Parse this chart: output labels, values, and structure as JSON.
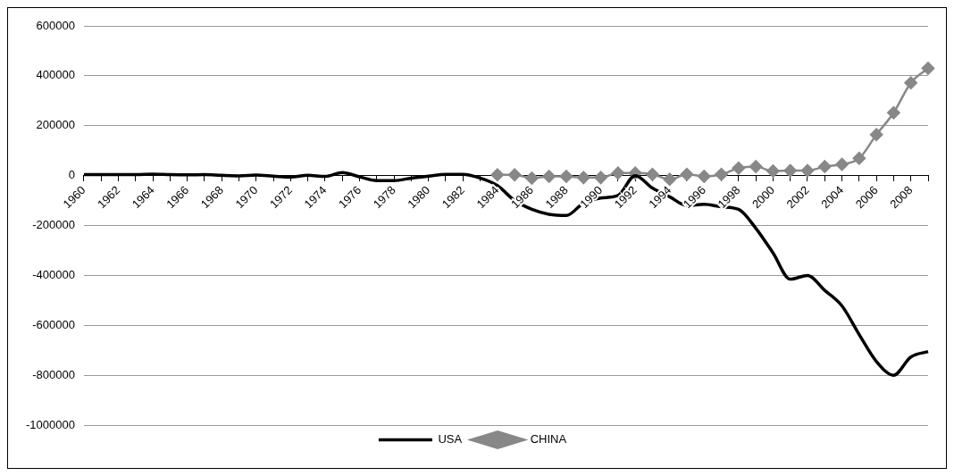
{
  "chart_data": {
    "type": "line",
    "categories": [
      "1960",
      null,
      "1962",
      null,
      "1964",
      null,
      "1966",
      null,
      "1968",
      null,
      "1970",
      null,
      "1972",
      null,
      "1974",
      null,
      "1976",
      null,
      "1978",
      null,
      "1980",
      null,
      "1982",
      null,
      "1984",
      null,
      "1986",
      null,
      "1988",
      null,
      "1990",
      null,
      "1992",
      null,
      "1994",
      null,
      "1996",
      null,
      "1998",
      null,
      "2000",
      null,
      "2002",
      null,
      "2004",
      null,
      "2006",
      null,
      "2008",
      null
    ],
    "series": [
      {
        "name": "USA",
        "color": "#000000",
        "marker": "none",
        "values": [
          4000,
          4000,
          4000,
          4000,
          6000,
          4000,
          3000,
          4000,
          1000,
          -1000,
          2000,
          -2000,
          -6000,
          1000,
          -3000,
          12000,
          -5000,
          -20000,
          -20000,
          -10000,
          -2000,
          5000,
          5000,
          -10000,
          -40000,
          -100000,
          -135000,
          -155000,
          -160000,
          -110000,
          -90000,
          -80000,
          0,
          -50000,
          -85000,
          -120000,
          -115000,
          -125000,
          -135000,
          -211000,
          -310000,
          -415000,
          -400000,
          -460000,
          -522000,
          -637000,
          -745000,
          -800000,
          -727000,
          -705000
        ]
      },
      {
        "name": "CHINA",
        "color": "#888888",
        "marker": "diamond",
        "values": [
          null,
          null,
          null,
          null,
          null,
          null,
          null,
          null,
          null,
          null,
          null,
          null,
          null,
          null,
          null,
          null,
          null,
          null,
          null,
          null,
          null,
          null,
          null,
          null,
          3000,
          3000,
          -10000,
          -3000,
          -3000,
          -8000,
          -8000,
          10000,
          10000,
          5000,
          -15000,
          5000,
          -3000,
          5000,
          30000,
          36000,
          18000,
          20000,
          20000,
          36000,
          45000,
          69000,
          164000,
          252000,
          372000,
          430000
        ]
      }
    ],
    "ylim": [
      -1000000,
      600000
    ],
    "yticks": [
      -1000000,
      -800000,
      -600000,
      -400000,
      -200000,
      0,
      200000,
      400000,
      600000
    ],
    "grid": "y",
    "legend": "bottom",
    "line_style": "solid"
  }
}
